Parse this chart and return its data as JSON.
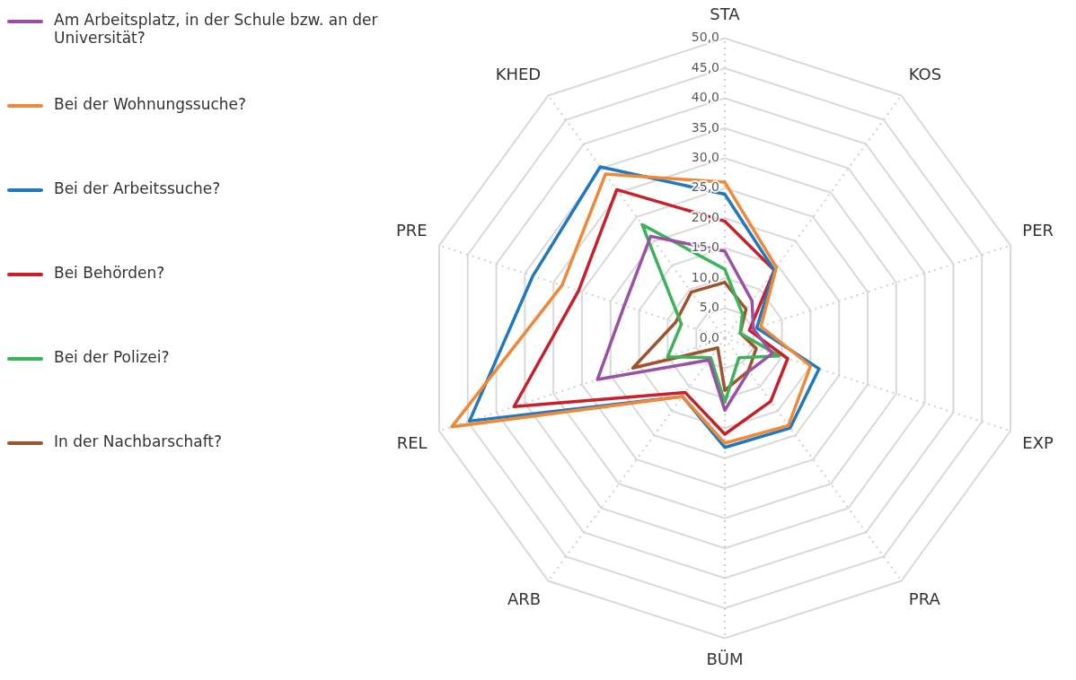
{
  "chart_data": {
    "type": "radar",
    "categories": [
      "STA",
      "KOS",
      "PER",
      "EXP",
      "PRA",
      "BÜM",
      "ARB",
      "REL",
      "PRE",
      "KHED"
    ],
    "ylim": [
      0,
      50
    ],
    "yticks": [
      {
        "value": 0,
        "label": "0,0"
      },
      {
        "value": 5,
        "label": "5,0"
      },
      {
        "value": 10,
        "label": "10,0"
      },
      {
        "value": 15,
        "label": "15,0"
      },
      {
        "value": 20,
        "label": "20,0"
      },
      {
        "value": 25,
        "label": "25,0"
      },
      {
        "value": 30,
        "label": "30,0"
      },
      {
        "value": 35,
        "label": "35,0"
      },
      {
        "value": 40,
        "label": "40,0"
      },
      {
        "value": 45,
        "label": "45,0"
      },
      {
        "value": 50,
        "label": "50,0"
      }
    ],
    "grid": true,
    "legend": "left",
    "marker": "none",
    "line_style": "solid",
    "series": [
      {
        "name": "Am Arbeitsplatz, in der Schule bzw. an der Universität?",
        "color": "#9b4fa5",
        "values": [
          14.5,
          7.7,
          5,
          8.3,
          6.8,
          12,
          4.5,
          22.3,
          17.6,
          21
        ]
      },
      {
        "name": "Bei der Wohnungssuche?",
        "color": "#f0883a",
        "values": [
          26,
          14.6,
          6.3,
          15,
          18,
          17.5,
          12,
          47.8,
          28.5,
          33.8
        ]
      },
      {
        "name": "Bei der Arbeitssuche?",
        "color": "#1f78c0",
        "values": [
          24,
          14,
          5.6,
          16.5,
          18.5,
          18.2,
          12,
          44.7,
          33.6,
          35.3
        ]
      },
      {
        "name": "Bei Behörden?",
        "color": "#c8202a",
        "values": [
          19.5,
          14,
          4.3,
          11,
          13,
          16,
          11.2,
          36.9,
          25.6,
          30.6
        ]
      },
      {
        "name": "Bei der Polizei?",
        "color": "#3cb25a",
        "values": [
          11.5,
          5,
          2.7,
          9.5,
          4,
          10.7,
          4,
          10,
          7.6,
          23.4
        ]
      },
      {
        "name": "In der Nachbarschaft?",
        "color": "#a0522d",
        "values": [
          9.3,
          6,
          2.7,
          5.5,
          6.7,
          8.7,
          2,
          16.1,
          8.6,
          9.5
        ]
      }
    ]
  }
}
